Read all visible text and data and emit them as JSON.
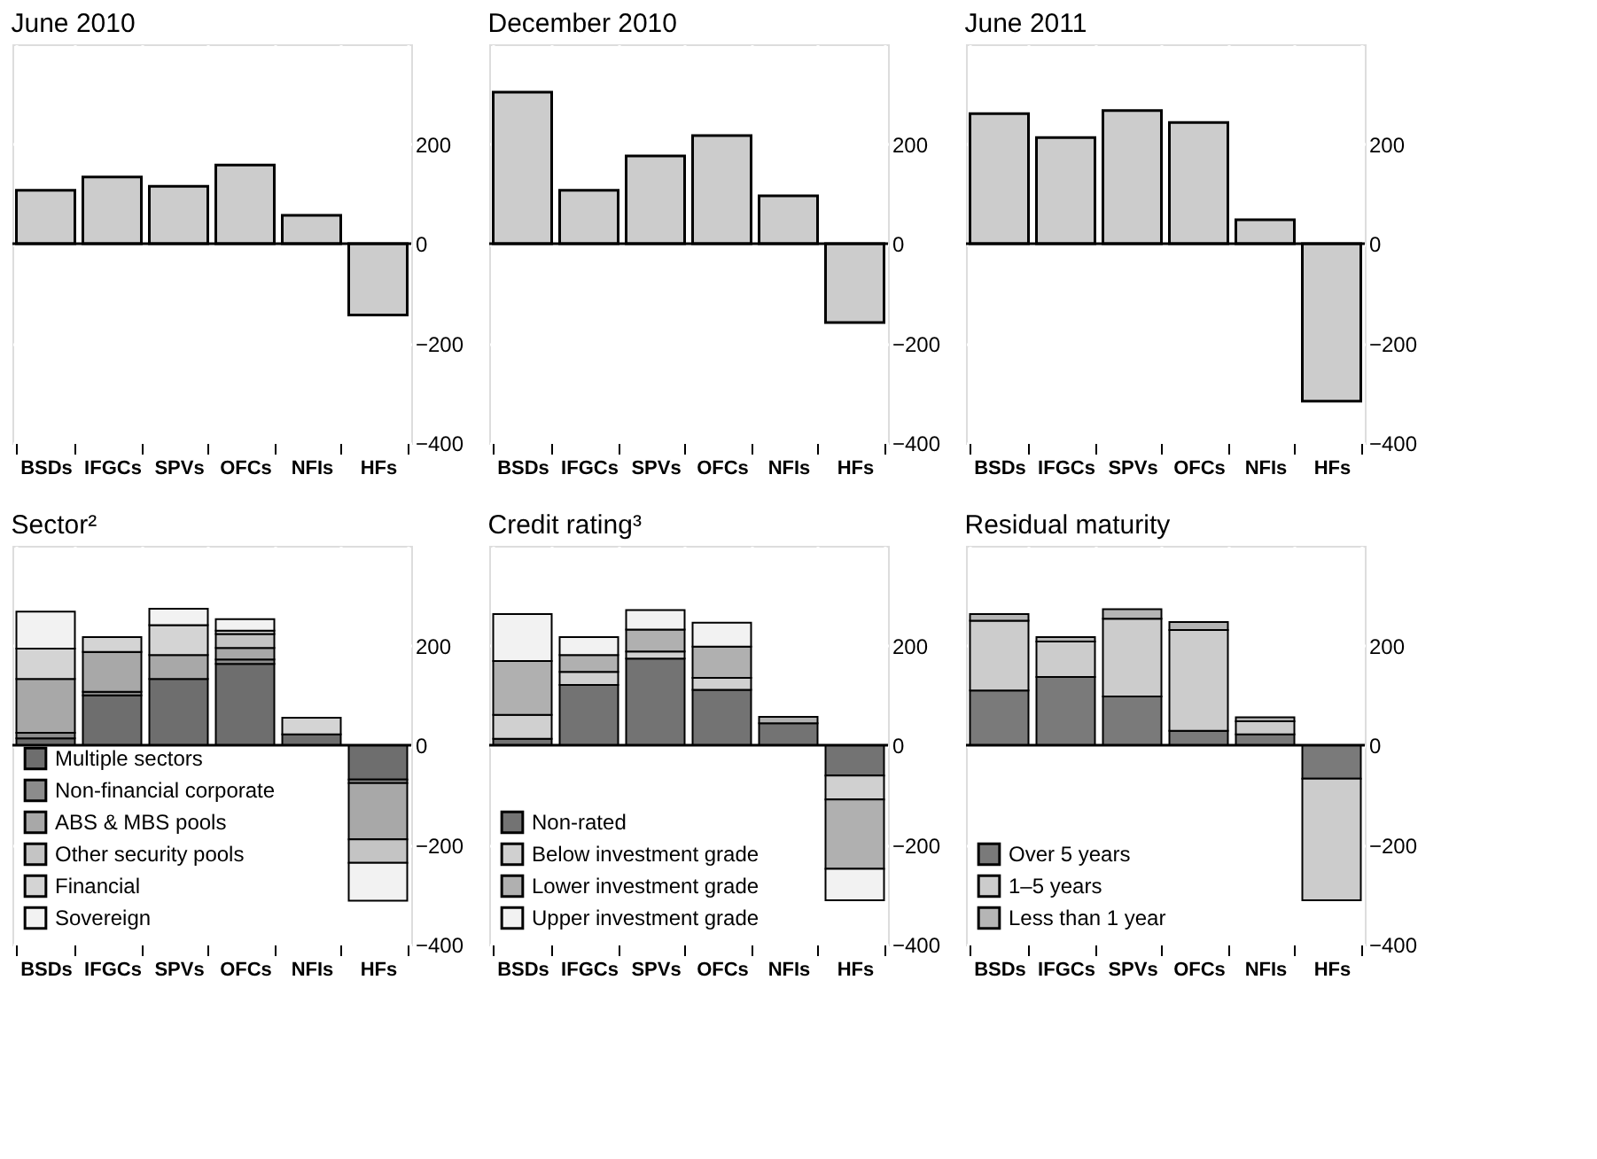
{
  "chart_data": [
    {
      "type": "bar",
      "title": "June 2010",
      "categories": [
        "BSDs",
        "IFGCs",
        "SPVs",
        "OFCs",
        "NFIs",
        "HFs"
      ],
      "values": [
        107,
        134,
        115,
        158,
        57,
        -143
      ],
      "color": "#cccccc",
      "ylim": [
        -400,
        400
      ],
      "yticks": [
        -400,
        -200,
        0,
        200
      ],
      "grid": true,
      "legend": false
    },
    {
      "type": "bar",
      "title": "December 2010",
      "categories": [
        "BSDs",
        "IFGCs",
        "SPVs",
        "OFCs",
        "NFIs",
        "HFs"
      ],
      "values": [
        304,
        107,
        176,
        217,
        96,
        -158
      ],
      "color": "#cccccc",
      "ylim": [
        -400,
        400
      ],
      "yticks": [
        -400,
        -200,
        0,
        200
      ],
      "grid": true,
      "legend": false
    },
    {
      "type": "bar",
      "title": "June 2011",
      "categories": [
        "BSDs",
        "IFGCs",
        "SPVs",
        "OFCs",
        "NFIs",
        "HFs"
      ],
      "values": [
        261,
        213,
        267,
        243,
        48,
        -316
      ],
      "color": "#cccccc",
      "ylim": [
        -400,
        400
      ],
      "yticks": [
        -400,
        -200,
        0,
        200
      ],
      "grid": true,
      "legend": false
    },
    {
      "type": "bar",
      "title": "Sector²",
      "categories": [
        "BSDs",
        "IFGCs",
        "SPVs",
        "OFCs",
        "NFIs",
        "HFs"
      ],
      "stacked": true,
      "ylim": [
        -400,
        400
      ],
      "yticks": [
        -400,
        -200,
        0,
        200
      ],
      "grid": true,
      "legend": "bottom left",
      "series": [
        {
          "name": "Multiple sectors",
          "color": "#6e6e6e",
          "values": [
            14,
            100,
            133,
            163,
            22,
            -69
          ]
        },
        {
          "name": "Non-financial corporate",
          "color": "#8c8c8c",
          "values": [
            11,
            7,
            null,
            9,
            null,
            -7
          ]
        },
        {
          "name": "ABS & MBS pools",
          "color": "#a8a8a8",
          "values": [
            108,
            80,
            48,
            23,
            null,
            -113
          ]
        },
        {
          "name": "Other security pools",
          "color": "#c4c4c4",
          "values": [
            null,
            null,
            null,
            28,
            null,
            -47
          ]
        },
        {
          "name": "Financial",
          "color": "#d4d4d4",
          "values": [
            61,
            30,
            60,
            7,
            33,
            null
          ]
        },
        {
          "name": "Sovereign",
          "color": "#f2f2f2",
          "values": [
            74,
            null,
            33,
            23,
            null,
            -76
          ]
        }
      ]
    },
    {
      "type": "bar",
      "title": "Credit rating³",
      "categories": [
        "BSDs",
        "IFGCs",
        "SPVs",
        "OFCs",
        "NFIs",
        "HFs"
      ],
      "stacked": true,
      "ylim": [
        -400,
        400
      ],
      "yticks": [
        -400,
        -200,
        0,
        200
      ],
      "grid": true,
      "legend": "bottom left",
      "series": [
        {
          "name": "Non-rated",
          "color": "#737373",
          "values": [
            13,
            121,
            174,
            111,
            44,
            -61
          ]
        },
        {
          "name": "Below investment grade",
          "color": "#d0d0d0",
          "values": [
            48,
            26,
            14,
            24,
            null,
            -48
          ]
        },
        {
          "name": "Lower investment grade",
          "color": "#b0b0b0",
          "values": [
            108,
            34,
            44,
            63,
            13,
            -139
          ]
        },
        {
          "name": "Upper investment grade",
          "color": "#f2f2f2",
          "values": [
            94,
            36,
            39,
            48,
            null,
            -63
          ]
        }
      ]
    },
    {
      "type": "bar",
      "title": "Residual maturity",
      "categories": [
        "BSDs",
        "IFGCs",
        "SPVs",
        "OFCs",
        "NFIs",
        "HFs"
      ],
      "stacked": true,
      "ylim": [
        -400,
        400
      ],
      "yticks": [
        -400,
        -200,
        0,
        200
      ],
      "grid": true,
      "legend": "bottom left",
      "series": [
        {
          "name": "Over 5 years",
          "color": "#7a7a7a",
          "values": [
            110,
            137,
            98,
            29,
            22,
            -67
          ]
        },
        {
          "name": "1–5 years",
          "color": "#cccccc",
          "values": [
            140,
            71,
            156,
            202,
            26,
            -244
          ]
        },
        {
          "name": "Less than 1 year",
          "color": "#b5b5b5",
          "values": [
            13,
            9,
            19,
            16,
            8,
            null
          ]
        }
      ]
    }
  ]
}
